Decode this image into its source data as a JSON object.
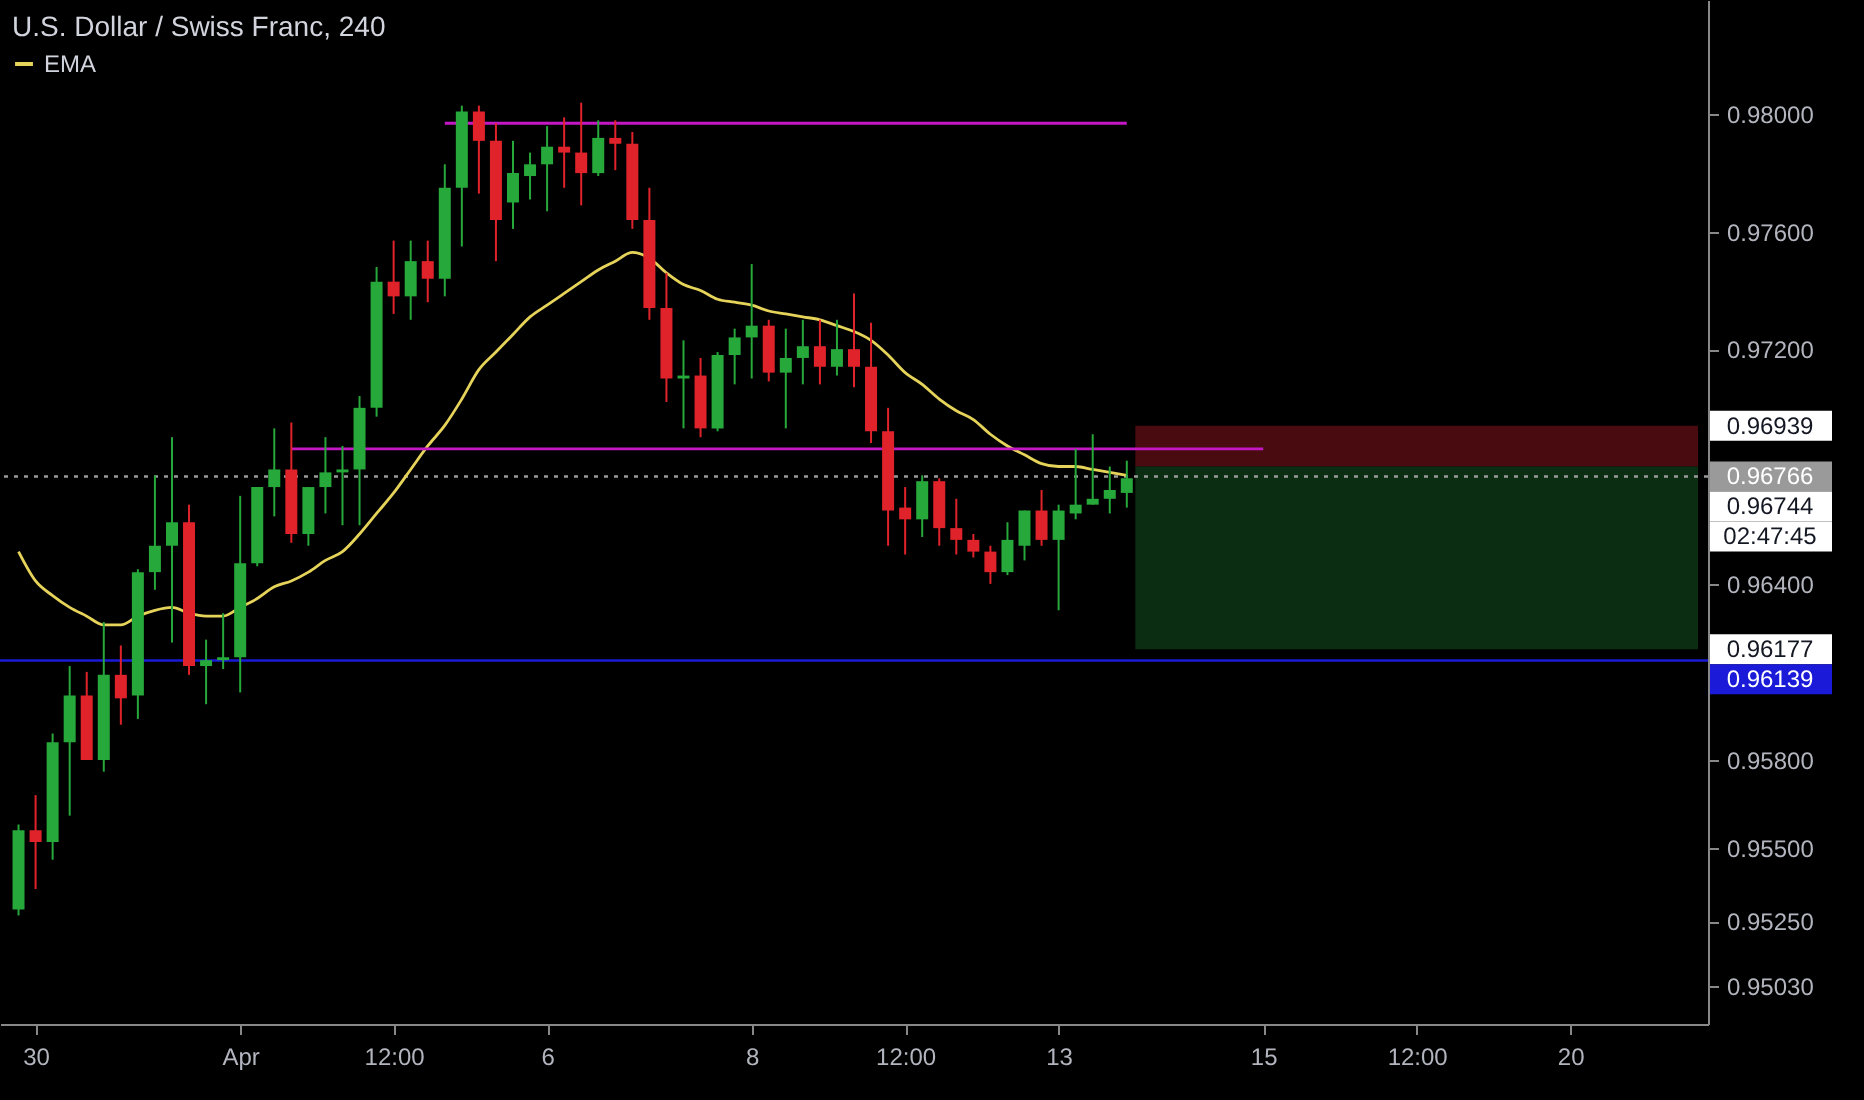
{
  "chart_data": {
    "type": "candlestick",
    "title": "U.S. Dollar / Swiss Franc, 240",
    "categories": [
      null,
      "30",
      null,
      null,
      null,
      null,
      null,
      null,
      null,
      null,
      null,
      null,
      null,
      "Apr",
      null,
      null,
      null,
      null,
      null,
      null,
      null,
      null,
      "12:00",
      null,
      null,
      null,
      null,
      null,
      null,
      null,
      null,
      "6",
      null,
      null,
      null,
      null,
      null,
      null,
      null,
      null,
      null,
      null,
      null,
      "8",
      null,
      null,
      null,
      null,
      null,
      null,
      null,
      null,
      "12:00",
      null,
      null,
      null,
      null,
      null,
      null,
      null,
      null,
      "13",
      null,
      null,
      null,
      null,
      null,
      null,
      null,
      null,
      null,
      null,
      null,
      "15",
      null,
      null,
      null,
      null,
      null,
      null,
      null,
      null,
      "12:00",
      null,
      null,
      null,
      null,
      null,
      null,
      null,
      null,
      "20",
      null,
      null,
      null,
      null,
      null,
      null,
      null
    ],
    "ohlc": [
      [
        0.9529,
        0.9558,
        0.9527,
        0.9556
      ],
      [
        0.9556,
        0.9568,
        0.9536,
        0.9552
      ],
      [
        0.9552,
        0.9589,
        0.9546,
        0.9586
      ],
      [
        0.9586,
        0.9612,
        0.9561,
        0.9602
      ],
      [
        0.9602,
        0.961,
        0.958,
        0.958
      ],
      [
        0.958,
        0.9627,
        0.9576,
        0.9609
      ],
      [
        0.9609,
        0.9619,
        0.9592,
        0.9601
      ],
      [
        0.9602,
        0.9645,
        0.9594,
        0.9644
      ],
      [
        0.9644,
        0.9677,
        0.9638,
        0.9653
      ],
      [
        0.9653,
        0.969,
        0.962,
        0.9661
      ],
      [
        0.9661,
        0.9667,
        0.9609,
        0.9612
      ],
      [
        0.9612,
        0.9621,
        0.9599,
        0.9614
      ],
      [
        0.9614,
        0.963,
        0.9611,
        0.9615
      ],
      [
        0.9615,
        0.967,
        0.9603,
        0.9647
      ],
      [
        0.9647,
        0.9673,
        0.9646,
        0.9673
      ],
      [
        0.9673,
        0.9693,
        0.9663,
        0.9679
      ],
      [
        0.9679,
        0.9695,
        0.9654,
        0.9657
      ],
      [
        0.9657,
        0.9673,
        0.9653,
        0.9673
      ],
      [
        0.9673,
        0.969,
        0.9664,
        0.9678
      ],
      [
        0.9678,
        0.9687,
        0.966,
        0.9679
      ],
      [
        0.9679,
        0.9704,
        0.966,
        0.97
      ],
      [
        0.97,
        0.9748,
        0.9697,
        0.9743
      ],
      [
        0.9743,
        0.9757,
        0.9732,
        0.9738
      ],
      [
        0.9738,
        0.9757,
        0.973,
        0.975
      ],
      [
        0.975,
        0.9757,
        0.9736,
        0.9744
      ],
      [
        0.9744,
        0.9783,
        0.9738,
        0.9775
      ],
      [
        0.9775,
        0.9803,
        0.9755,
        0.9801
      ],
      [
        0.9801,
        0.9803,
        0.9773,
        0.9791
      ],
      [
        0.9791,
        0.9797,
        0.975,
        0.9764
      ],
      [
        0.977,
        0.9791,
        0.9761,
        0.978
      ],
      [
        0.9779,
        0.9787,
        0.9771,
        0.9783
      ],
      [
        0.9783,
        0.9796,
        0.9767,
        0.9789
      ],
      [
        0.9789,
        0.9799,
        0.9775,
        0.9787
      ],
      [
        0.9787,
        0.9804,
        0.9769,
        0.978
      ],
      [
        0.978,
        0.9798,
        0.9779,
        0.9792
      ],
      [
        0.9792,
        0.9798,
        0.9781,
        0.979
      ],
      [
        0.979,
        0.9794,
        0.9761,
        0.9764
      ],
      [
        0.9764,
        0.9775,
        0.973,
        0.9734
      ],
      [
        0.9734,
        0.9746,
        0.9702,
        0.971
      ],
      [
        0.971,
        0.9723,
        0.9693,
        0.9711
      ],
      [
        0.9711,
        0.9717,
        0.969,
        0.9693
      ],
      [
        0.9693,
        0.9719,
        0.9692,
        0.9718
      ],
      [
        0.9718,
        0.9727,
        0.9708,
        0.9724
      ],
      [
        0.9724,
        0.9749,
        0.971,
        0.9728
      ],
      [
        0.9728,
        0.973,
        0.9709,
        0.9712
      ],
      [
        0.9712,
        0.9727,
        0.9693,
        0.9717
      ],
      [
        0.9717,
        0.973,
        0.9708,
        0.9721
      ],
      [
        0.9721,
        0.973,
        0.9708,
        0.9714
      ],
      [
        0.9714,
        0.973,
        0.9711,
        0.972
      ],
      [
        0.972,
        0.9739,
        0.9707,
        0.9714
      ],
      [
        0.9714,
        0.9729,
        0.9688,
        0.9692
      ],
      [
        0.9692,
        0.97,
        0.9653,
        0.9665
      ],
      [
        0.9666,
        0.9673,
        0.965,
        0.9662
      ],
      [
        0.9662,
        0.9677,
        0.9656,
        0.9675
      ],
      [
        0.9675,
        0.9676,
        0.9653,
        0.9659
      ],
      [
        0.9659,
        0.9669,
        0.965,
        0.9655
      ],
      [
        0.9655,
        0.9657,
        0.9649,
        0.9651
      ],
      [
        0.9651,
        0.9653,
        0.964,
        0.9644
      ],
      [
        0.9644,
        0.9661,
        0.9643,
        0.9655
      ],
      [
        0.9653,
        0.9665,
        0.9648,
        0.9665
      ],
      [
        0.9665,
        0.9672,
        0.9653,
        0.9655
      ],
      [
        0.9655,
        0.9667,
        0.9631,
        0.9665
      ],
      [
        0.9664,
        0.9686,
        0.9662,
        0.9667
      ],
      [
        0.9667,
        0.9691,
        0.9667,
        0.9669
      ],
      [
        0.9669,
        0.968,
        0.9664,
        0.9672
      ],
      [
        0.9671,
        0.9682,
        0.9666,
        0.9676
      ],
      null,
      null,
      null,
      null,
      null,
      null,
      null,
      null,
      null,
      null,
      null,
      null,
      null,
      null,
      null,
      null,
      null,
      null,
      null,
      null,
      null,
      null,
      null,
      null,
      null,
      null,
      null,
      null,
      null,
      null,
      null,
      null,
      null
    ],
    "colors": [
      "#26a83a",
      "#e0232a",
      "#26a83a",
      "#26a83a",
      "#e0232a",
      "#26a83a",
      "#e0232a",
      "#26a83a",
      "#26a83a",
      "#26a83a",
      "#e0232a",
      "#26a83a",
      "#26a83a",
      "#26a83a",
      "#26a83a",
      "#26a83a",
      "#e0232a",
      "#26a83a",
      "#26a83a",
      "#26a83a",
      "#26a83a",
      "#26a83a",
      "#e0232a",
      "#26a83a",
      "#e0232a",
      "#26a83a",
      "#26a83a",
      "#e0232a",
      "#e0232a",
      "#26a83a",
      "#26a83a",
      "#26a83a",
      "#e0232a",
      "#e0232a",
      "#26a83a",
      "#e0232a",
      "#e0232a",
      "#e0232a",
      "#e0232a",
      "#26a83a",
      "#e0232a",
      "#26a83a",
      "#26a83a",
      "#26a83a",
      "#e0232a",
      "#26a83a",
      "#26a83a",
      "#e0232a",
      "#26a83a",
      "#e0232a",
      "#e0232a",
      "#e0232a",
      "#e0232a",
      "#26a83a",
      "#e0232a",
      "#e0232a",
      "#e0232a",
      "#e0232a",
      "#26a83a",
      "#26a83a",
      "#e0232a",
      "#26a83a",
      "#26a83a",
      "#26a83a",
      "#26a83a",
      "#26a83a",
      null,
      null,
      null,
      null,
      null,
      null,
      null,
      null,
      null,
      null,
      null,
      null,
      null,
      null,
      null,
      null,
      null,
      null,
      null,
      null,
      null,
      null,
      null,
      null,
      null,
      null,
      null,
      null,
      null,
      null,
      null,
      null,
      null
    ],
    "series": [
      {
        "name": "EMA",
        "type": "line",
        "color": "#e6d35a",
        "values": [
          0.9651,
          0.9641,
          0.9636,
          0.9632,
          0.9629,
          0.9626,
          0.9626,
          0.9629,
          0.9631,
          0.9632,
          0.963,
          0.9629,
          0.9629,
          0.9632,
          0.9635,
          0.9639,
          0.9641,
          0.9644,
          0.9648,
          0.9651,
          0.9657,
          0.9664,
          0.9671,
          0.9679,
          0.9687,
          0.9694,
          0.9703,
          0.9713,
          0.9719,
          0.9725,
          0.9731,
          0.9735,
          0.9739,
          0.9743,
          0.9747,
          0.975,
          0.9753,
          0.9751,
          0.9746,
          0.9742,
          0.974,
          0.9737,
          0.9736,
          0.9735,
          0.9733,
          0.9732,
          0.9731,
          0.973,
          0.9728,
          0.9726,
          0.9723,
          0.9718,
          0.9712,
          0.9708,
          0.9703,
          0.9699,
          0.9696,
          0.9691,
          0.9687,
          0.9684,
          0.9681,
          0.968,
          0.968,
          0.9679,
          0.9678,
          0.9677,
          null,
          null,
          null,
          null,
          null,
          null,
          null,
          null,
          null,
          null,
          null,
          null,
          null,
          null,
          null,
          null,
          null,
          null,
          null,
          null,
          null,
          null,
          null,
          null,
          null,
          null,
          null,
          null,
          null,
          null,
          null,
          null,
          null
        ]
      },
      {
        "type": "line",
        "color": "#c418c4",
        "values": [
          null,
          null,
          null,
          null,
          null,
          null,
          null,
          null,
          null,
          null,
          null,
          null,
          null,
          null,
          null,
          null,
          null,
          null,
          null,
          null,
          null,
          null,
          null,
          null,
          null,
          0.9797,
          0.9797,
          0.9797,
          0.9797,
          0.9797,
          0.9797,
          0.9797,
          0.9797,
          0.9797,
          0.9797,
          0.9797,
          0.9797,
          0.9797,
          0.9797,
          0.9797,
          0.9797,
          0.9797,
          0.9797,
          0.9797,
          0.9797,
          0.9797,
          0.9797,
          0.9797,
          0.9797,
          0.9797,
          0.9797,
          0.9797,
          0.9797,
          0.9797,
          0.9797,
          0.9797,
          0.9797,
          0.9797,
          0.9797,
          0.9797,
          0.9797,
          0.9797,
          0.9797,
          0.9797,
          0.9797,
          0.9797,
          null,
          null,
          null,
          null,
          null,
          null,
          null,
          null,
          null,
          null,
          null,
          null,
          null,
          null,
          null,
          null,
          null,
          null,
          null,
          null,
          null,
          null,
          null,
          null,
          null,
          null,
          null,
          null,
          null,
          null,
          null,
          null,
          null
        ]
      },
      {
        "type": "line",
        "color": "#c418c4",
        "values": [
          null,
          null,
          null,
          null,
          null,
          null,
          null,
          null,
          null,
          null,
          null,
          null,
          null,
          null,
          null,
          null,
          0.9686,
          0.9686,
          0.9686,
          0.9686,
          0.9686,
          0.9686,
          0.9686,
          0.9686,
          0.9686,
          0.9686,
          0.9686,
          0.9686,
          0.9686,
          0.9686,
          0.9686,
          0.9686,
          0.9686,
          0.9686,
          0.9686,
          0.9686,
          0.9686,
          0.9686,
          0.9686,
          0.9686,
          0.9686,
          0.9686,
          0.9686,
          0.9686,
          0.9686,
          0.9686,
          0.9686,
          0.9686,
          0.9686,
          0.9686,
          0.9686,
          0.9686,
          0.9686,
          0.9686,
          0.9686,
          0.9686,
          0.9686,
          0.9686,
          0.9686,
          0.9686,
          0.9686,
          0.9686,
          0.9686,
          0.9686,
          0.9686,
          0.9686,
          0.9686,
          0.9686,
          0.9686,
          0.9686,
          0.9686,
          0.9686,
          0.9686,
          0.9686,
          null,
          null,
          null,
          null,
          null,
          null,
          null,
          null,
          null,
          null,
          null,
          null,
          null,
          null,
          null,
          null,
          null,
          null,
          null,
          null,
          null,
          null,
          null,
          null,
          null
        ]
      }
    ],
    "bands": [
      {
        "axis": "y",
        "from": 0.968,
        "to": 0.96939,
        "color": "#4a0b10"
      },
      {
        "axis": "y",
        "from": 0.96177,
        "to": 0.968,
        "color": "#0b2e12"
      }
    ],
    "ref_lines": [
      {
        "axis": "y",
        "value": 0.96766,
        "label": "0.96766",
        "color": "#9a9a9a",
        "line_style": "dotted"
      },
      {
        "axis": "y",
        "value": 0.96139,
        "label": "0.96139",
        "color": "#1a1ad8",
        "line_style": "solid"
      }
    ],
    "annotations": [
      "0.96744",
      "02:47:45"
    ],
    "ylim": [
      0.949,
      0.9839
    ],
    "yticks": [
      {
        "value": 0.98,
        "label": "0.98000"
      },
      {
        "value": 0.976,
        "label": "0.97600"
      },
      {
        "value": 0.972,
        "label": "0.97200"
      },
      0.96939,
      {
        "value": 0.964,
        "label": "0.96400"
      },
      0.96177,
      {
        "value": 0.958,
        "label": "0.95800"
      },
      {
        "value": 0.955,
        "label": "0.95500"
      },
      {
        "value": 0.9525,
        "label": "0.95250"
      },
      {
        "value": 0.9503,
        "label": "0.95030"
      }
    ],
    "legend": "top left"
  }
}
